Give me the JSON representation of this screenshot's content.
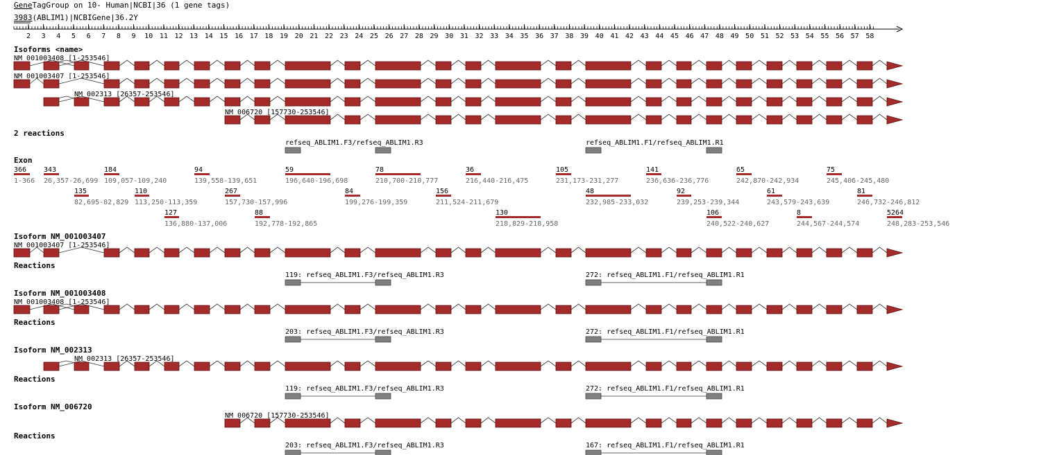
{
  "header": {
    "link_text": "Gene",
    "title_rest": "TagGroup on 10- Human|NCBI|36 (1 gene tags)",
    "gene_link": "3983",
    "gene_rest": "(ABLIM1)|NCBIGene|36.2",
    "gene_mark": "Y"
  },
  "ruler": {
    "ticks": [
      "2",
      "3",
      "4",
      "5",
      "6",
      "7",
      "8",
      "9",
      "10",
      "11",
      "12",
      "13",
      "14",
      "15",
      "16",
      "17",
      "18",
      "19",
      "20",
      "21",
      "22",
      "23",
      "24",
      "25",
      "26",
      "27",
      "28",
      "29",
      "30",
      "31",
      "32",
      "33",
      "34",
      "35",
      "36",
      "37",
      "38",
      "39",
      "40",
      "41",
      "42",
      "43",
      "44",
      "45",
      "46",
      "47",
      "48",
      "49",
      "50",
      "51",
      "52",
      "53",
      "54",
      "55",
      "56",
      "57",
      "58"
    ]
  },
  "colors": {
    "exon": "#a52a2a",
    "primer": "#808080",
    "line": "#333333"
  },
  "exons": [
    {
      "size": "366",
      "range": "1-366"
    },
    {
      "size": "135",
      "range": "82,695-82,829"
    },
    {
      "size": "343",
      "range": "26,357-26,699"
    },
    {
      "size": "184",
      "range": "109,057-109,240"
    },
    {
      "size": "110",
      "range": "113,250-113,359"
    },
    {
      "size": "127",
      "range": "136,880-137,006"
    },
    {
      "size": "94",
      "range": "139,558-139,651"
    },
    {
      "size": "267",
      "range": "157,730-157,996"
    },
    {
      "size": "88",
      "range": "192,778-192,865"
    },
    {
      "size": "59",
      "range": "196,640-196,698"
    },
    {
      "size": "84",
      "range": "199,276-199,359"
    },
    {
      "size": "78",
      "range": "210,700-210,777"
    },
    {
      "size": "156",
      "range": "211,524-211,679"
    },
    {
      "size": "36",
      "range": "216,440-216,475"
    },
    {
      "size": "130",
      "range": "218,829-218,958"
    },
    {
      "size": "105",
      "range": "231,173-231,277"
    },
    {
      "size": "48",
      "range": "232,985-233,032"
    },
    {
      "size": "141",
      "range": "236,636-236,776"
    },
    {
      "size": "92",
      "range": "239,253-239,344"
    },
    {
      "size": "106",
      "range": "240,522-240,627"
    },
    {
      "size": "65",
      "range": "242,870-242,934"
    },
    {
      "size": "61",
      "range": "243,579-243,639"
    },
    {
      "size": "8",
      "range": "244,567-244,574"
    },
    {
      "size": "75",
      "range": "245,406-245,480"
    },
    {
      "size": "81",
      "range": "246,732-246,812"
    },
    {
      "size": "5264",
      "range": "248,283-253,546"
    }
  ],
  "overview": {
    "isoforms_heading": "Isoforms <name>",
    "isoforms": [
      {
        "label": "NM_001003408 [1-253546]",
        "exons": [
          1,
          2,
          3,
          4,
          5,
          6,
          7,
          8,
          9,
          10,
          11,
          12,
          13,
          14,
          15,
          16,
          17,
          18,
          19,
          20,
          21,
          22,
          23,
          24,
          25,
          26
        ]
      },
      {
        "label": "NM_001003407 [1-253546]",
        "exons": [
          1,
          3,
          4,
          5,
          6,
          7,
          8,
          9,
          10,
          11,
          12,
          13,
          14,
          15,
          16,
          17,
          18,
          19,
          20,
          21,
          22,
          23,
          24,
          25,
          26
        ]
      },
      {
        "label": "NM_002313 [26357-253546]",
        "exons": [
          2,
          3,
          4,
          5,
          6,
          7,
          8,
          9,
          10,
          11,
          12,
          13,
          14,
          15,
          16,
          17,
          18,
          19,
          20,
          21,
          22,
          23,
          24,
          25,
          26
        ]
      },
      {
        "label": "NM_006720 [157730-253546]",
        "exons": [
          8,
          9,
          10,
          11,
          12,
          13,
          14,
          15,
          16,
          17,
          18,
          19,
          20,
          21,
          22,
          23,
          24,
          25,
          26
        ]
      }
    ],
    "reactions_heading": "2 reactions",
    "reactions": [
      {
        "label": "refseq_ABLIM1.F3/refseq_ABLIM1.R3",
        "from": 10,
        "to": 12
      },
      {
        "label": "refseq_ABLIM1.F1/refseq_ABLIM1.R1",
        "from": 17,
        "to": 20
      }
    ],
    "exon_heading": "Exon"
  },
  "sections": [
    {
      "title": "Isoform NM_001003407",
      "label": "NM_001003407 [1-253546]",
      "exons": [
        1,
        3,
        4,
        5,
        6,
        7,
        8,
        9,
        10,
        11,
        12,
        13,
        14,
        15,
        16,
        17,
        18,
        19,
        20,
        21,
        22,
        23,
        24,
        25,
        26
      ],
      "reactions_heading": "Reactions",
      "reactions": [
        {
          "label": "119: refseq_ABLIM1.F3/refseq_ABLIM1.R3",
          "from": 10,
          "to": 12
        },
        {
          "label": "272: refseq_ABLIM1.F1/refseq_ABLIM1.R1",
          "from": 17,
          "to": 20
        }
      ]
    },
    {
      "title": "Isoform NM_001003408",
      "label": "NM_001003408 [1-253546]",
      "exons": [
        1,
        2,
        3,
        4,
        5,
        6,
        7,
        8,
        9,
        10,
        11,
        12,
        13,
        14,
        15,
        16,
        17,
        18,
        19,
        20,
        21,
        22,
        23,
        24,
        25,
        26
      ],
      "reactions_heading": "Reactions",
      "reactions": [
        {
          "label": "203: refseq_ABLIM1.F3/refseq_ABLIM1.R3",
          "from": 10,
          "to": 12
        },
        {
          "label": "272: refseq_ABLIM1.F1/refseq_ABLIM1.R1",
          "from": 17,
          "to": 20
        }
      ]
    },
    {
      "title": "Isoform NM_002313",
      "label": "NM_002313 [26357-253546]",
      "exons": [
        2,
        3,
        4,
        5,
        6,
        7,
        8,
        9,
        10,
        11,
        12,
        13,
        14,
        15,
        16,
        17,
        18,
        19,
        20,
        21,
        22,
        23,
        24,
        25,
        26
      ],
      "reactions_heading": "Reactions",
      "reactions": [
        {
          "label": "119: refseq_ABLIM1.F3/refseq_ABLIM1.R3",
          "from": 10,
          "to": 12
        },
        {
          "label": "272: refseq_ABLIM1.F1/refseq_ABLIM1.R1",
          "from": 17,
          "to": 20
        }
      ]
    },
    {
      "title": "Isoform NM_006720",
      "label": "NM_006720 [157730-253546]",
      "exons": [
        8,
        9,
        10,
        11,
        12,
        13,
        14,
        15,
        16,
        17,
        18,
        19,
        20,
        21,
        22,
        23,
        24,
        25,
        26
      ],
      "reactions_heading": "Reactions",
      "reactions": [
        {
          "label": "203: refseq_ABLIM1.F3/refseq_ABLIM1.R3",
          "from": 10,
          "to": 12
        },
        {
          "label": "167: refseq_ABLIM1.F1/refseq_ABLIM1.R1",
          "from": 17,
          "to": 20
        }
      ]
    }
  ]
}
